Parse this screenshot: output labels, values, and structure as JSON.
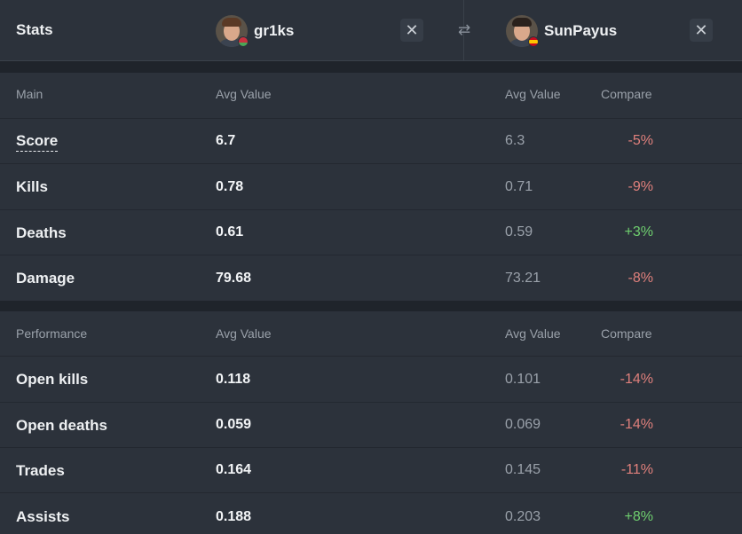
{
  "header": {
    "stats_label": "Stats",
    "player1": {
      "name": "gr1ks",
      "flag": "belarus-flag",
      "avatar": "player-avatar"
    },
    "player2": {
      "name": "SunPayus",
      "flag": "spain-flag",
      "avatar": "player-avatar"
    },
    "close_glyph": "✕",
    "swap_glyph": "⇄"
  },
  "colors": {
    "background": "#1f242b",
    "panel": "#2c323b",
    "negative": "#e0807c",
    "positive": "#6fcf6f",
    "muted": "#9aa1aa"
  },
  "main": {
    "title": "Main",
    "col_avg1": "Avg Value",
    "col_avg2": "Avg Value",
    "col_compare": "Compare",
    "rows": [
      {
        "label": "Score",
        "v1": "6.7",
        "v2": "6.3",
        "cmp": "-5%",
        "trend": "negative"
      },
      {
        "label": "Kills",
        "v1": "0.78",
        "v2": "0.71",
        "cmp": "-9%",
        "trend": "negative"
      },
      {
        "label": "Deaths",
        "v1": "0.61",
        "v2": "0.59",
        "cmp": "+3%",
        "trend": "positive"
      },
      {
        "label": "Damage",
        "v1": "79.68",
        "v2": "73.21",
        "cmp": "-8%",
        "trend": "negative"
      }
    ]
  },
  "performance": {
    "title": "Performance",
    "col_avg1": "Avg Value",
    "col_avg2": "Avg Value",
    "col_compare": "Compare",
    "rows": [
      {
        "label": "Open kills",
        "v1": "0.118",
        "v2": "0.101",
        "cmp": "-14%",
        "trend": "negative"
      },
      {
        "label": "Open deaths",
        "v1": "0.059",
        "v2": "0.069",
        "cmp": "-14%",
        "trend": "negative"
      },
      {
        "label": "Trades",
        "v1": "0.164",
        "v2": "0.145",
        "cmp": "-11%",
        "trend": "negative"
      },
      {
        "label": "Assists",
        "v1": "0.188",
        "v2": "0.203",
        "cmp": "+8%",
        "trend": "positive"
      }
    ]
  }
}
